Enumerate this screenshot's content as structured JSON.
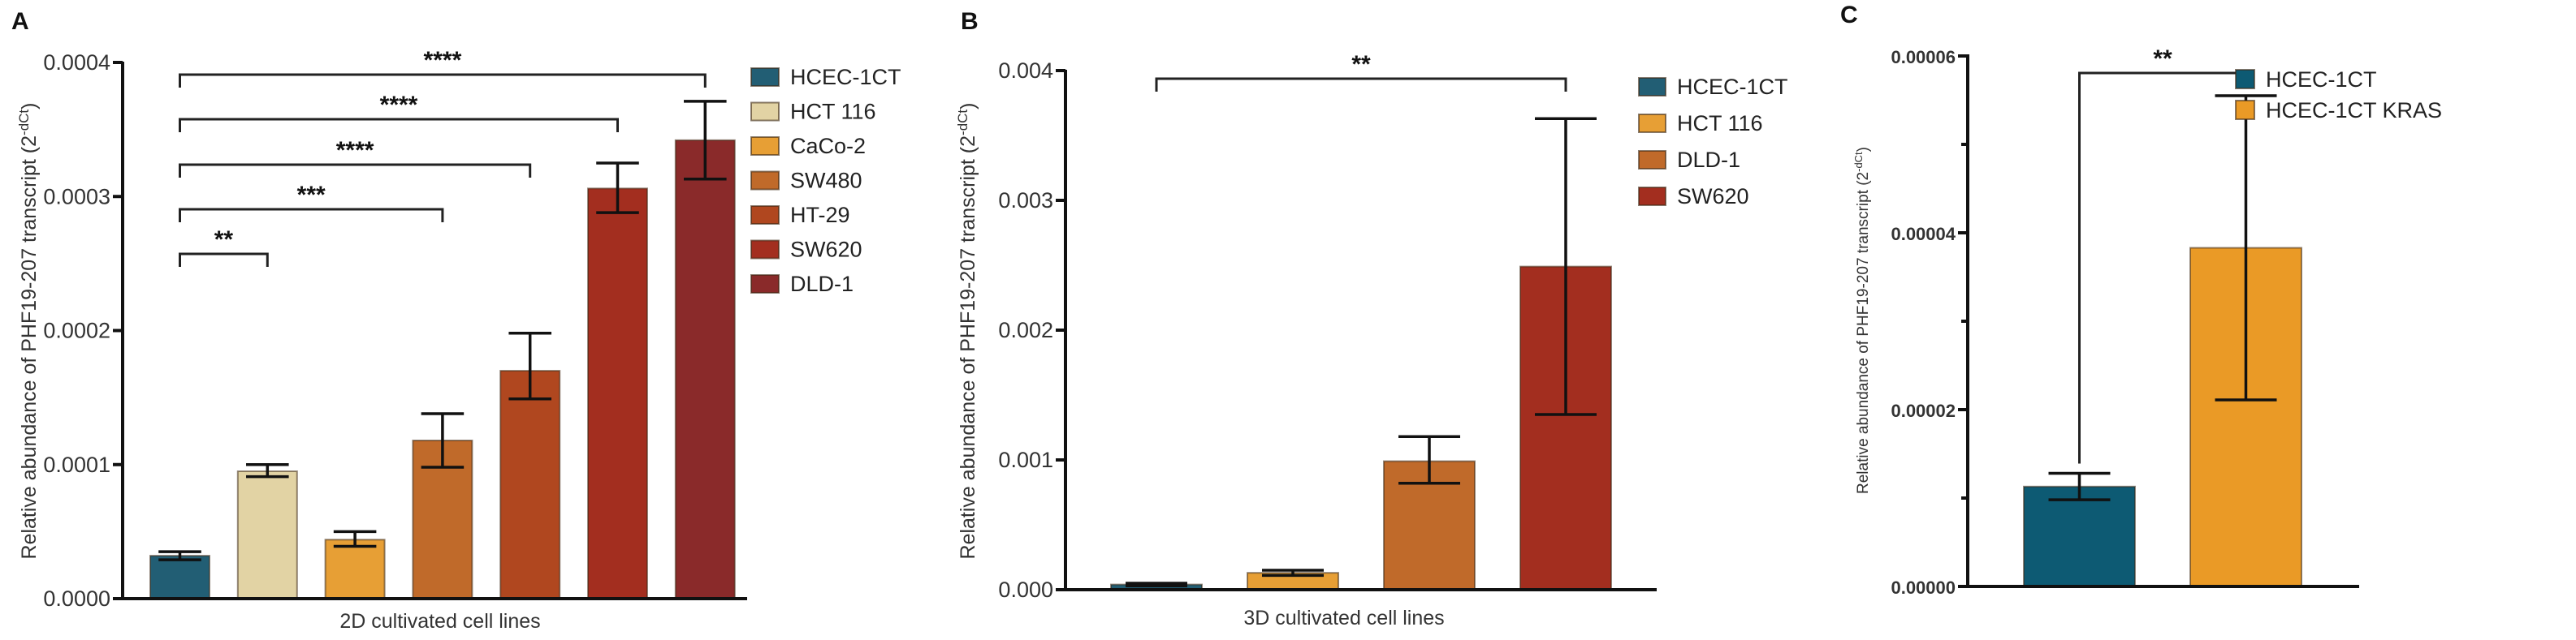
{
  "figure": {
    "panels": [
      "A",
      "B",
      "C"
    ]
  },
  "chart_data": [
    {
      "id": "A",
      "type": "bar",
      "panel_label": "A",
      "title": "",
      "xlabel": "2D cultivated cell lines",
      "ylabel": "Relative abundance of PHF19-207 transcript (2^-dCt)",
      "ylabel_main": "Relative abundance of PHF19-207 transcript (2",
      "ylabel_sup": "-dCt",
      "ylabel_close": ")",
      "ylim": [
        0,
        0.0004
      ],
      "yticks": [
        0,
        0.0001,
        0.0002,
        0.0003,
        0.0004
      ],
      "ytick_labels": [
        "0.0000",
        "0.0001",
        "0.0002",
        "0.0003",
        "0.0004"
      ],
      "legend_position": "right",
      "categories": [
        "HCEC-1CT",
        "HCT 116",
        "CaCo-2",
        "SW480",
        "HT-29",
        "SW620",
        "DLD-1"
      ],
      "colors": [
        "#225e74",
        "#e2d3a4",
        "#e79f35",
        "#c06a2a",
        "#b0471f",
        "#a32e1f",
        "#8a2a2a"
      ],
      "values": [
        3.2e-05,
        9.5e-05,
        4.4e-05,
        0.000118,
        0.00017,
        0.000306,
        0.000342
      ],
      "error_low": [
        2.9e-05,
        9.1e-05,
        3.9e-05,
        9.8e-05,
        0.000149,
        0.000288,
        0.000313
      ],
      "error_high": [
        3.5e-05,
        0.0001,
        5e-05,
        0.000138,
        0.000198,
        0.000325,
        0.000371
      ],
      "significance": [
        {
          "from": "HCEC-1CT",
          "to": "HCT 116",
          "label": "**"
        },
        {
          "from": "HCEC-1CT",
          "to": "SW480",
          "label": "***"
        },
        {
          "from": "HCEC-1CT",
          "to": "HT-29",
          "label": "****"
        },
        {
          "from": "HCEC-1CT",
          "to": "SW620",
          "label": "****"
        },
        {
          "from": "HCEC-1CT",
          "to": "DLD-1",
          "label": "****"
        }
      ]
    },
    {
      "id": "B",
      "type": "bar",
      "panel_label": "B",
      "title": "",
      "xlabel": "3D cultivated cell lines",
      "ylabel": "Relative abundance of PHF19-207 transcript (2^-dCt)",
      "ylabel_main": "Relative abundance of PHF19-207 transcript (2",
      "ylabel_sup": "-dCt",
      "ylabel_close": ")",
      "ylim": [
        0,
        0.004
      ],
      "yticks": [
        0,
        0.001,
        0.002,
        0.003,
        0.004
      ],
      "ytick_labels": [
        "0.000",
        "0.001",
        "0.002",
        "0.003",
        "0.004"
      ],
      "legend_position": "right",
      "categories": [
        "HCEC-1CT",
        "HCT 116",
        "DLD-1",
        "SW620"
      ],
      "colors": [
        "#225e74",
        "#e79f35",
        "#c06a2a",
        "#a32e1f"
      ],
      "values": [
        4e-05,
        0.00013,
        0.00099,
        0.00249
      ],
      "error_low": [
        3e-05,
        0.00011,
        0.00082,
        0.00135
      ],
      "error_high": [
        5e-05,
        0.00015,
        0.00118,
        0.00363
      ],
      "significance": [
        {
          "from": "HCEC-1CT",
          "to": "SW620",
          "label": "**"
        }
      ]
    },
    {
      "id": "C",
      "type": "bar",
      "panel_label": "C",
      "title": "",
      "xlabel": "",
      "ylabel": "Relative abundance of PHF19-207 transcript (2^-dCt)",
      "ylabel_main": "Relative abundance of PHF19-207 transcript (2",
      "ylabel_sup": "-dCt",
      "ylabel_close": ")",
      "ylim": [
        0,
        6e-05
      ],
      "yticks": [
        0,
        2e-05,
        4e-05,
        6e-05
      ],
      "ytick_labels": [
        "0.00000",
        "0.00002",
        "0.00004",
        "0.00006"
      ],
      "minor_yticks": [
        1e-05,
        3e-05,
        5e-05
      ],
      "legend_position": "upper right",
      "categories": [
        "HCEC-1CT",
        "HCEC-1CT KRAS"
      ],
      "colors": [
        "#0d5a73",
        "#ea9a26"
      ],
      "values": [
        1.13e-05,
        3.83e-05
      ],
      "error_low": [
        9.8e-06,
        2.11e-05
      ],
      "error_high": [
        1.28e-05,
        5.55e-05
      ],
      "significance": [
        {
          "from": "HCEC-1CT",
          "to": "HCEC-1CT KRAS",
          "label": "**"
        }
      ]
    }
  ]
}
